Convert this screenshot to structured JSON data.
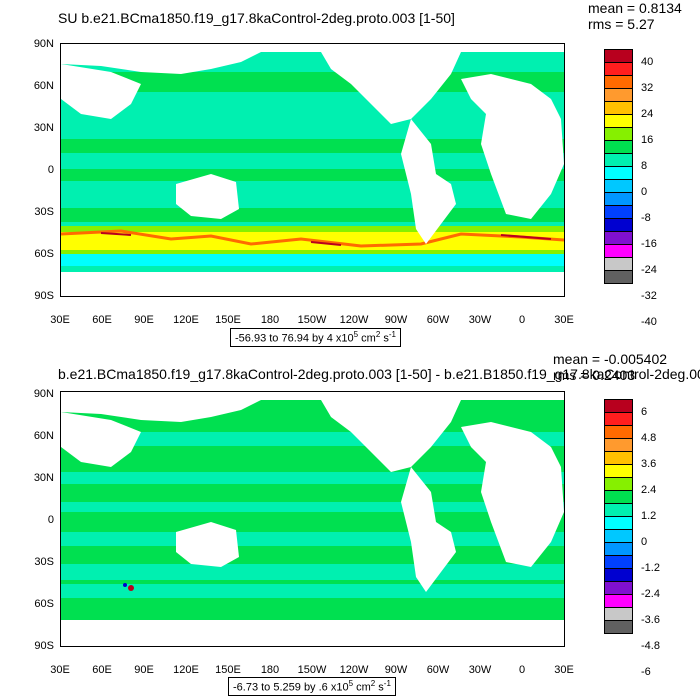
{
  "chart_data": [
    {
      "type": "heatmap",
      "title": "SU b.e21.BCma1850.f19_g17.8kaControl-2deg.proto.003 [1-50]",
      "stats": {
        "mean": "mean = 0.8134",
        "rms": "rms = 5.27"
      },
      "range_text_prefix": "-56.93 to 76.94 by 4 x10",
      "range_exp": "5",
      "range_unit": " cm",
      "range_unit_exp1": "2",
      "range_unit_tail": " s",
      "range_unit_exp2": "-1",
      "ytick_labels": [
        "90N",
        "60N",
        "30N",
        "0",
        "30S",
        "60S",
        "90S"
      ],
      "xtick_labels": [
        "30E",
        "60E",
        "90E",
        "120E",
        "150E",
        "180",
        "150W",
        "120W",
        "90W",
        "60W",
        "30W",
        "0",
        "30E"
      ],
      "levels": [
        "40",
        "32",
        "24",
        "16",
        "8",
        "0",
        "-8",
        "-16",
        "-24",
        "-32",
        "-40"
      ],
      "colors": [
        "#b8001e",
        "#ff1e1e",
        "#ff6a00",
        "#ff9a2e",
        "#ffc000",
        "#ffff00",
        "#86f000",
        "#00e050",
        "#00f0b0",
        "#00ffff",
        "#00c8ff",
        "#0096ff",
        "#0040ff",
        "#0000d0",
        "#8010d0",
        "#ff00ff",
        "#c8c8c8",
        "#606060"
      ],
      "xlim": [
        30,
        390
      ],
      "ylim": [
        -90,
        90
      ]
    },
    {
      "type": "heatmap",
      "title": "b.e21.BCma1850.f19_g17.8kaControl-2deg.proto.003 [1-50] - b.e21.B1850.f19_g17.8kaControl-2deg.00",
      "stats": {
        "mean": "mean = -0.005402",
        "rms": "rms = 0.2403"
      },
      "range_text_prefix": "-6.73 to 5.259 by .6 x10",
      "range_exp": "5",
      "range_unit": " cm",
      "range_unit_exp1": "2",
      "range_unit_tail": " s",
      "range_unit_exp2": "-1",
      "ytick_labels": [
        "90N",
        "60N",
        "30N",
        "0",
        "30S",
        "60S",
        "90S"
      ],
      "xtick_labels": [
        "30E",
        "60E",
        "90E",
        "120E",
        "150E",
        "180",
        "150W",
        "120W",
        "90W",
        "60W",
        "30W",
        "0",
        "30E"
      ],
      "levels": [
        "6",
        "4.8",
        "3.6",
        "2.4",
        "1.2",
        "0",
        "-1.2",
        "-2.4",
        "-3.6",
        "-4.8",
        "-6"
      ],
      "colors": [
        "#b8001e",
        "#ff1e1e",
        "#ff6a00",
        "#ff9a2e",
        "#ffc000",
        "#ffff00",
        "#86f000",
        "#00e050",
        "#00f0b0",
        "#00ffff",
        "#00c8ff",
        "#0096ff",
        "#0040ff",
        "#0000d0",
        "#8010d0",
        "#ff00ff",
        "#c8c8c8",
        "#606060"
      ],
      "xlim": [
        30,
        390
      ],
      "ylim": [
        -90,
        90
      ]
    }
  ]
}
